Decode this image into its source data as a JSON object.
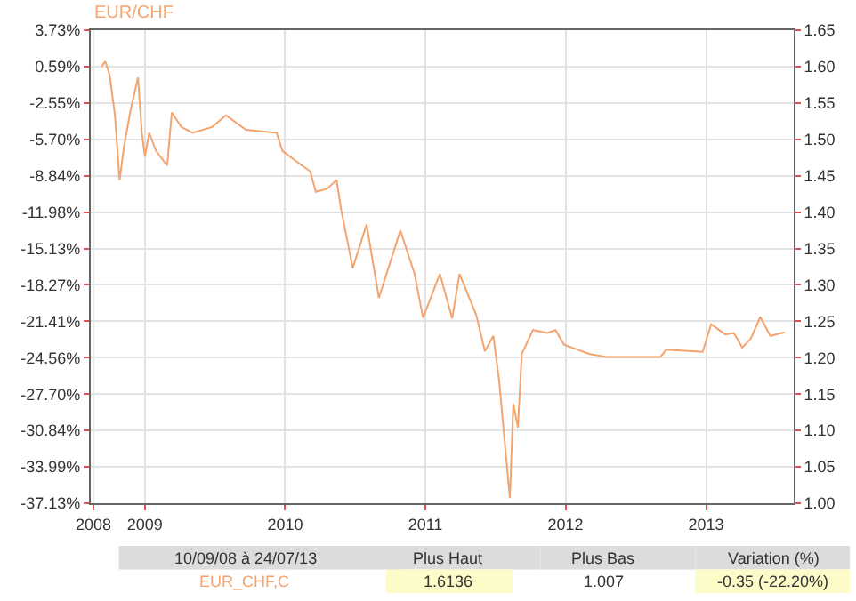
{
  "chart_data": {
    "type": "line",
    "title": "EUR/CHF",
    "x": [
      "2008-09-10",
      "2008-09-20",
      "2008-10-01",
      "2008-10-15",
      "2008-10-27",
      "2008-11-08",
      "2008-11-25",
      "2008-12-14",
      "2008-12-24",
      "2009-01-01",
      "2009-01-12",
      "2009-01-30",
      "2009-02-28",
      "2009-03-12",
      "2009-04-06",
      "2009-05-05",
      "2009-06-25",
      "2009-07-31",
      "2009-09-21",
      "2009-12-10",
      "2009-12-25",
      "2010-02-14",
      "2010-03-07",
      "2010-03-22",
      "2010-04-20",
      "2010-05-15",
      "2010-05-27",
      "2010-06-26",
      "2010-08-01",
      "2010-09-02",
      "2010-10-28",
      "2010-12-04",
      "2010-12-26",
      "2011-02-08",
      "2011-03-12",
      "2011-03-31",
      "2011-05-14",
      "2011-06-05",
      "2011-06-27",
      "2011-07-12",
      "2011-08-09",
      "2011-08-18",
      "2011-08-30",
      "2011-09-09",
      "2011-10-08",
      "2011-11-14",
      "2011-12-06",
      "2011-12-28",
      "2012-03-04",
      "2012-04-17",
      "2012-09-04",
      "2012-09-19",
      "2012-12-23",
      "2013-01-14",
      "2013-02-20",
      "2013-03-14",
      "2013-04-05",
      "2013-04-27",
      "2013-05-22",
      "2013-06-17",
      "2013-07-24"
    ],
    "series": [
      {
        "color": "#f4a46e",
        "axis": "y2",
        "values": [
          1.6,
          1.607,
          1.589,
          1.533,
          1.444,
          1.492,
          1.541,
          1.585,
          1.509,
          1.476,
          1.509,
          1.484,
          1.464,
          1.537,
          1.517,
          1.509,
          1.517,
          1.533,
          1.513,
          1.509,
          1.484,
          1.464,
          1.456,
          1.428,
          1.432,
          1.444,
          1.403,
          1.323,
          1.383,
          1.282,
          1.375,
          1.315,
          1.255,
          1.315,
          1.254,
          1.315,
          1.258,
          1.209,
          1.23,
          1.169,
          1.007,
          1.137,
          1.104,
          1.205,
          1.238,
          1.234,
          1.238,
          1.218,
          1.205,
          1.201,
          1.201,
          1.211,
          1.208,
          1.246,
          1.232,
          1.234,
          1.214,
          1.226,
          1.256,
          1.23,
          1.235
        ]
      }
    ],
    "xlim": [
      "2008-08-13",
      "2013-08-17"
    ],
    "xticks": [
      {
        "value": "2008-08-20",
        "label": "2008"
      },
      {
        "value": "2009-01-01",
        "label": "2009"
      },
      {
        "value": "2010-01-01",
        "label": "2010"
      },
      {
        "value": "2011-01-01",
        "label": "2011"
      },
      {
        "value": "2012-01-01",
        "label": "2012"
      },
      {
        "value": "2013-01-01",
        "label": "2013"
      }
    ],
    "ylim": [
      -37.13,
      3.73
    ],
    "yticks": [
      {
        "value": 3.73,
        "label": "3.73%"
      },
      {
        "value": 0.59,
        "label": "0.59%"
      },
      {
        "value": -2.55,
        "label": "-2.55%"
      },
      {
        "value": -5.7,
        "label": "-5.70%"
      },
      {
        "value": -8.84,
        "label": "-8.84%"
      },
      {
        "value": -11.98,
        "label": "-11.98%"
      },
      {
        "value": -15.13,
        "label": "-15.13%"
      },
      {
        "value": -18.27,
        "label": "-18.27%"
      },
      {
        "value": -21.41,
        "label": "-21.41%"
      },
      {
        "value": -24.56,
        "label": "-24.56%"
      },
      {
        "value": -27.7,
        "label": "-27.70%"
      },
      {
        "value": -30.84,
        "label": "-30.84%"
      },
      {
        "value": -33.99,
        "label": "-33.99%"
      },
      {
        "value": -37.13,
        "label": "-37.13%"
      }
    ],
    "y2lim": [
      1.0,
      1.65
    ],
    "y2ticks": [
      {
        "value": 1.0,
        "label": "1.00"
      },
      1.05,
      {
        "value": 1.1,
        "label": "1.10"
      },
      1.15,
      {
        "value": 1.2,
        "label": "1.20"
      },
      1.25,
      {
        "value": 1.3,
        "label": "1.30"
      },
      1.35,
      {
        "value": 1.4,
        "label": "1.40"
      },
      1.45,
      {
        "value": 1.5,
        "label": "1.50"
      },
      1.55,
      {
        "value": 1.6,
        "label": "1.60"
      },
      1.65
    ],
    "grid": true,
    "marker": "none",
    "line_style": "solid",
    "annotations": [
      "10/09/08 à 24/07/13",
      "Plus Haut",
      "Plus Bas",
      "Variation (%)",
      "EUR_CHF,C",
      "1.6136",
      "1.007",
      "-0.35 (-22.20%)"
    ]
  }
}
